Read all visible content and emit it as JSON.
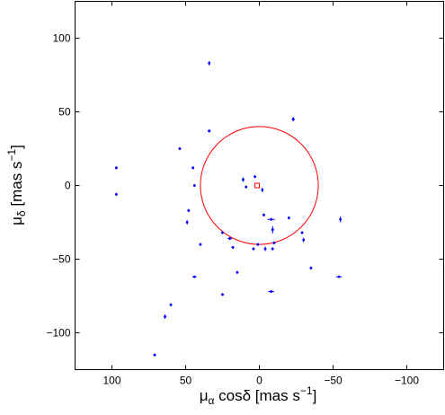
{
  "chart_data": {
    "type": "scatter",
    "xlabel": {
      "mu": "μ",
      "mu_sub": "α",
      "mid": " cosδ [mas s",
      "exp": "−1",
      "end": "]"
    },
    "ylabel": {
      "mu": "μ",
      "mu_sub": "δ",
      "mid": " [mas s",
      "exp": "−1",
      "end": "]"
    },
    "x_axis_reversed": true,
    "xlim": [
      125,
      -125
    ],
    "ylim": [
      -125,
      125
    ],
    "xticks": [
      100,
      50,
      0,
      -50,
      -100
    ],
    "xtick_labels": [
      "100",
      "50",
      "0",
      "−50",
      "−100"
    ],
    "yticks": [
      -100,
      -50,
      0,
      50,
      100
    ],
    "ytick_labels": [
      "−100",
      "−50",
      "0",
      "50",
      "100"
    ],
    "grid": false,
    "colors": {
      "points": "#0000ff",
      "circle": "#ff0000",
      "center": "#ff0000"
    },
    "circle": {
      "cx": 0,
      "cy": 0,
      "r": 40
    },
    "center_marker": {
      "x": 1.5,
      "y": 0
    },
    "points": [
      {
        "x": 34,
        "y": 83,
        "ex": 0.8,
        "ey": 1.5
      },
      {
        "x": -23,
        "y": 45,
        "ex": 1,
        "ey": 1.5
      },
      {
        "x": 34,
        "y": 37,
        "ex": 1,
        "ey": 1
      },
      {
        "x": 97,
        "y": 12,
        "ex": 0.8,
        "ey": 1
      },
      {
        "x": 97,
        "y": -6,
        "ex": 0.8,
        "ey": 1
      },
      {
        "x": 54,
        "y": 25,
        "ex": 0.8,
        "ey": 1
      },
      {
        "x": 45,
        "y": 12,
        "ex": 0.8,
        "ey": 1
      },
      {
        "x": 44,
        "y": 0,
        "ex": 0.8,
        "ey": 1
      },
      {
        "x": 48,
        "y": -17,
        "ex": 0.8,
        "ey": 1
      },
      {
        "x": 49,
        "y": -25,
        "ex": 0.8,
        "ey": 1.5
      },
      {
        "x": 40,
        "y": -40,
        "ex": 0.8,
        "ey": 1
      },
      {
        "x": 44,
        "y": -62,
        "ex": 1.5,
        "ey": 0.8
      },
      {
        "x": 60,
        "y": -81,
        "ex": 0.8,
        "ey": 1
      },
      {
        "x": 64,
        "y": -89,
        "ex": 0.8,
        "ey": 1.5
      },
      {
        "x": 71,
        "y": -115,
        "ex": 1,
        "ey": 1
      },
      {
        "x": 25,
        "y": -74,
        "ex": 1,
        "ey": 1
      },
      {
        "x": 15,
        "y": -59,
        "ex": 0.8,
        "ey": 1
      },
      {
        "x": 18,
        "y": -42,
        "ex": 1,
        "ey": 1
      },
      {
        "x": 20,
        "y": -36,
        "ex": 1.5,
        "ey": 1
      },
      {
        "x": 25,
        "y": -32,
        "ex": 0.8,
        "ey": 1
      },
      {
        "x": 11,
        "y": 4,
        "ex": 0.8,
        "ey": 1.5
      },
      {
        "x": 9,
        "y": -1,
        "ex": 0.8,
        "ey": 1
      },
      {
        "x": 3,
        "y": 6,
        "ex": 0.8,
        "ey": 1
      },
      {
        "x": -2,
        "y": -3,
        "ex": 0.8,
        "ey": 1.5
      },
      {
        "x": -3,
        "y": -20,
        "ex": 0.8,
        "ey": 1
      },
      {
        "x": -8,
        "y": -23,
        "ex": 2.5,
        "ey": 1
      },
      {
        "x": -9,
        "y": -30,
        "ex": 0.8,
        "ey": 2.5
      },
      {
        "x": -20,
        "y": -22,
        "ex": 0.8,
        "ey": 1
      },
      {
        "x": -29,
        "y": -32,
        "ex": 0.8,
        "ey": 1
      },
      {
        "x": -30,
        "y": -37,
        "ex": 0.8,
        "ey": 1.5
      },
      {
        "x": -55,
        "y": -23,
        "ex": 0.8,
        "ey": 2
      },
      {
        "x": -35,
        "y": -56,
        "ex": 0.8,
        "ey": 1
      },
      {
        "x": -54,
        "y": -62,
        "ex": 2,
        "ey": 0.8
      },
      {
        "x": 1,
        "y": -40,
        "ex": 0.8,
        "ey": 1
      },
      {
        "x": 4,
        "y": -43,
        "ex": 0.8,
        "ey": 1
      },
      {
        "x": -4,
        "y": -43,
        "ex": 0.8,
        "ey": 1.5
      },
      {
        "x": -10,
        "y": -39,
        "ex": 0.8,
        "ey": 1
      },
      {
        "x": -9,
        "y": -43,
        "ex": 0.8,
        "ey": 1
      },
      {
        "x": -8,
        "y": -72,
        "ex": 2,
        "ey": 0.8
      }
    ]
  }
}
